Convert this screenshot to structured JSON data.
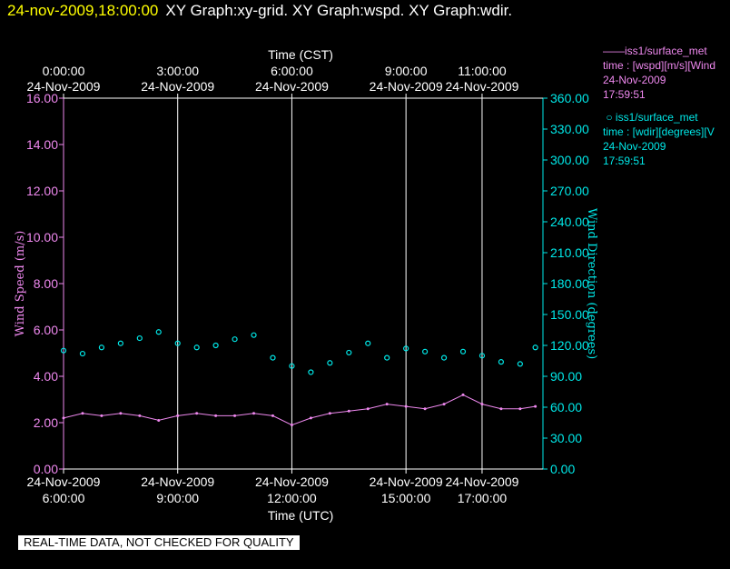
{
  "header": {
    "timestamp": "24-nov-2009,18:00:00",
    "graphs": "XY Graph:xy-grid.  XY Graph:wspd.  XY Graph:wdir."
  },
  "colors": {
    "speed": "#ee88ee",
    "direction": "#00e8e8",
    "timestamp": "#ffff00",
    "grid": "#ffffff",
    "background": "#000000"
  },
  "chart_data": {
    "type": "line",
    "top_axis": {
      "title": "Time (CST)",
      "ticks": [
        {
          "hour": 6,
          "time": "0:00:00",
          "date": "24-Nov-2009"
        },
        {
          "hour": 9,
          "time": "3:00:00",
          "date": "24-Nov-2009"
        },
        {
          "hour": 12,
          "time": "6:00:00",
          "date": "24-Nov-2009"
        },
        {
          "hour": 15,
          "time": "9:00:00",
          "date": "24-Nov-2009"
        },
        {
          "hour": 17,
          "time": "11:00:00",
          "date": "24-Nov-2009"
        }
      ]
    },
    "x_axis": {
      "title": "Time (UTC)",
      "range_hours": [
        6,
        18.6
      ],
      "ticks": [
        {
          "hour": 6,
          "date": "24-Nov-2009",
          "time": "6:00:00"
        },
        {
          "hour": 9,
          "date": "24-Nov-2009",
          "time": "9:00:00"
        },
        {
          "hour": 12,
          "date": "24-Nov-2009",
          "time": "12:00:00"
        },
        {
          "hour": 15,
          "date": "24-Nov-2009",
          "time": "15:00:00"
        },
        {
          "hour": 17,
          "date": "24-Nov-2009",
          "time": "17:00:00"
        }
      ]
    },
    "y_left": {
      "title": "Wind Speed (m/s)",
      "range": [
        0,
        16
      ],
      "ticks": [
        "0.00",
        "2.00",
        "4.00",
        "6.00",
        "8.00",
        "10.00",
        "12.00",
        "14.00",
        "16.00"
      ]
    },
    "y_right": {
      "title": "Wind Direction (degrees)",
      "range": [
        0,
        360
      ],
      "ticks": [
        "0.00",
        "30.00",
        "60.00",
        "90.00",
        "120.00",
        "150.00",
        "180.00",
        "210.00",
        "240.00",
        "270.00",
        "300.00",
        "330.00",
        "360.00"
      ]
    },
    "grid": "vertical",
    "series": [
      {
        "name": "iss1/surface_met",
        "style": "line",
        "variable": "time : [wspd][m/s][Wind",
        "date": "24-Nov-2009",
        "time": "17:59:51",
        "hours": [
          6.0,
          6.5,
          7.0,
          7.5,
          8.0,
          8.5,
          9.0,
          9.5,
          10.0,
          10.5,
          11.0,
          11.5,
          12.0,
          12.5,
          13.0,
          13.5,
          14.0,
          14.5,
          15.0,
          15.5,
          16.0,
          16.5,
          17.0,
          17.5,
          18.0,
          18.4
        ],
        "values": [
          2.2,
          2.4,
          2.3,
          2.4,
          2.3,
          2.1,
          2.3,
          2.4,
          2.3,
          2.3,
          2.4,
          2.3,
          1.9,
          2.2,
          2.4,
          2.5,
          2.6,
          2.8,
          2.7,
          2.6,
          2.8,
          3.2,
          2.8,
          2.6,
          2.6,
          2.7
        ]
      },
      {
        "name": "iss1/surface_met",
        "style": "markers",
        "variable": "time : [wdir][degrees][V",
        "date": "24-Nov-2009",
        "time": "17:59:51",
        "hours": [
          6.0,
          6.5,
          7.0,
          7.5,
          8.0,
          8.5,
          9.0,
          9.5,
          10.0,
          10.5,
          11.0,
          11.5,
          12.0,
          12.5,
          13.0,
          13.5,
          14.0,
          14.5,
          15.0,
          15.5,
          16.0,
          16.5,
          17.0,
          17.5,
          18.0,
          18.4
        ],
        "values": [
          115,
          112,
          118,
          122,
          127,
          133,
          122,
          118,
          120,
          126,
          130,
          108,
          100,
          94,
          103,
          113,
          122,
          108,
          117,
          114,
          108,
          114,
          110,
          104,
          102,
          118
        ]
      }
    ]
  },
  "notice": "REAL-TIME DATA, NOT CHECKED FOR QUALITY"
}
